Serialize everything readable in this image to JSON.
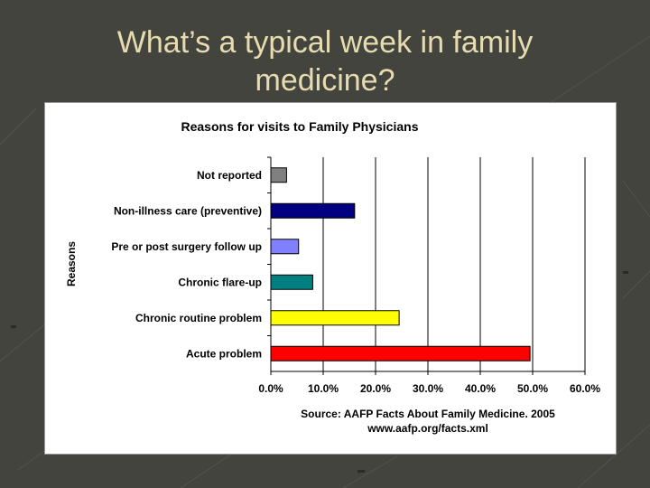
{
  "slide": {
    "title_line1": "What’s a typical week in family",
    "title_line2": "medicine?"
  },
  "chart_data": {
    "type": "bar",
    "orientation": "horizontal",
    "title": "Reasons for visits to Family Physicians",
    "ylabel": "Reasons",
    "xlabel": "",
    "categories": [
      "Not reported",
      "Non-illness care (preventive)",
      "Pre or post surgery follow up",
      "Chronic flare-up",
      "Chronic routine problem",
      "Acute problem"
    ],
    "values": [
      3.0,
      16.0,
      5.3,
      8.0,
      24.5,
      49.5
    ],
    "colors": [
      "#808080",
      "#000080",
      "#8080ff",
      "#008080",
      "#ffff00",
      "#ff0000"
    ],
    "xlim": [
      0,
      60
    ],
    "xticks": [
      "0.0%",
      "10.0%",
      "20.0%",
      "30.0%",
      "40.0%",
      "50.0%",
      "60.0%"
    ],
    "grid": true,
    "legend": "none",
    "source_line1": "Source: AAFP Facts About Family Medicine. 2005",
    "source_line2": "www.aafp.org/facts.xml"
  }
}
